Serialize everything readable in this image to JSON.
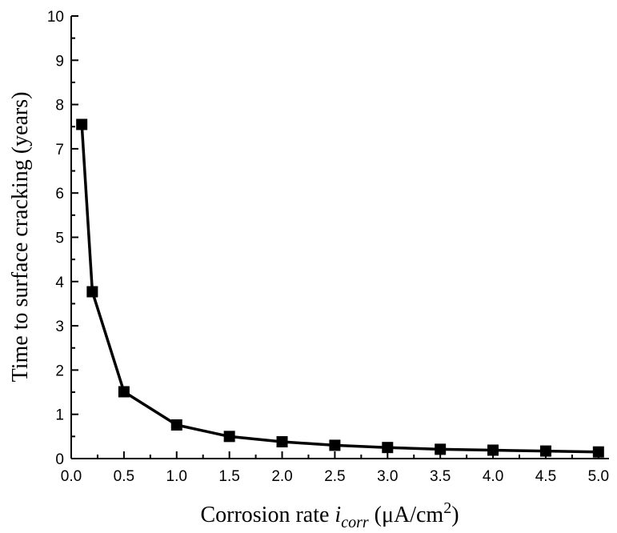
{
  "chart_data": {
    "type": "line",
    "xlabel": {
      "prefix": "Corrosion rate ",
      "var": "i",
      "sub": "corr",
      "unit_open": " (μA/cm",
      "sup": "2",
      "unit_close": ")"
    },
    "ylabel": "Time to surface cracking (years)",
    "xlim": [
      0,
      5.1
    ],
    "ylim": [
      0,
      10
    ],
    "x_ticks": [
      "0.0",
      "0.5",
      "1.0",
      "1.5",
      "2.0",
      "2.5",
      "3.0",
      "3.5",
      "4.0",
      "4.5",
      "5.0"
    ],
    "y_ticks": [
      "0",
      "1",
      "2",
      "3",
      "4",
      "5",
      "6",
      "7",
      "8",
      "9",
      "10"
    ],
    "grid": false,
    "series": [
      {
        "marker": "square",
        "color": "#000000",
        "x": [
          0.1,
          0.2,
          0.5,
          1.0,
          1.5,
          2.0,
          2.5,
          3.0,
          3.5,
          4.0,
          4.5,
          5.0
        ],
        "y": [
          7.55,
          3.77,
          1.51,
          0.76,
          0.5,
          0.38,
          0.3,
          0.25,
          0.21,
          0.19,
          0.17,
          0.15
        ]
      }
    ]
  }
}
